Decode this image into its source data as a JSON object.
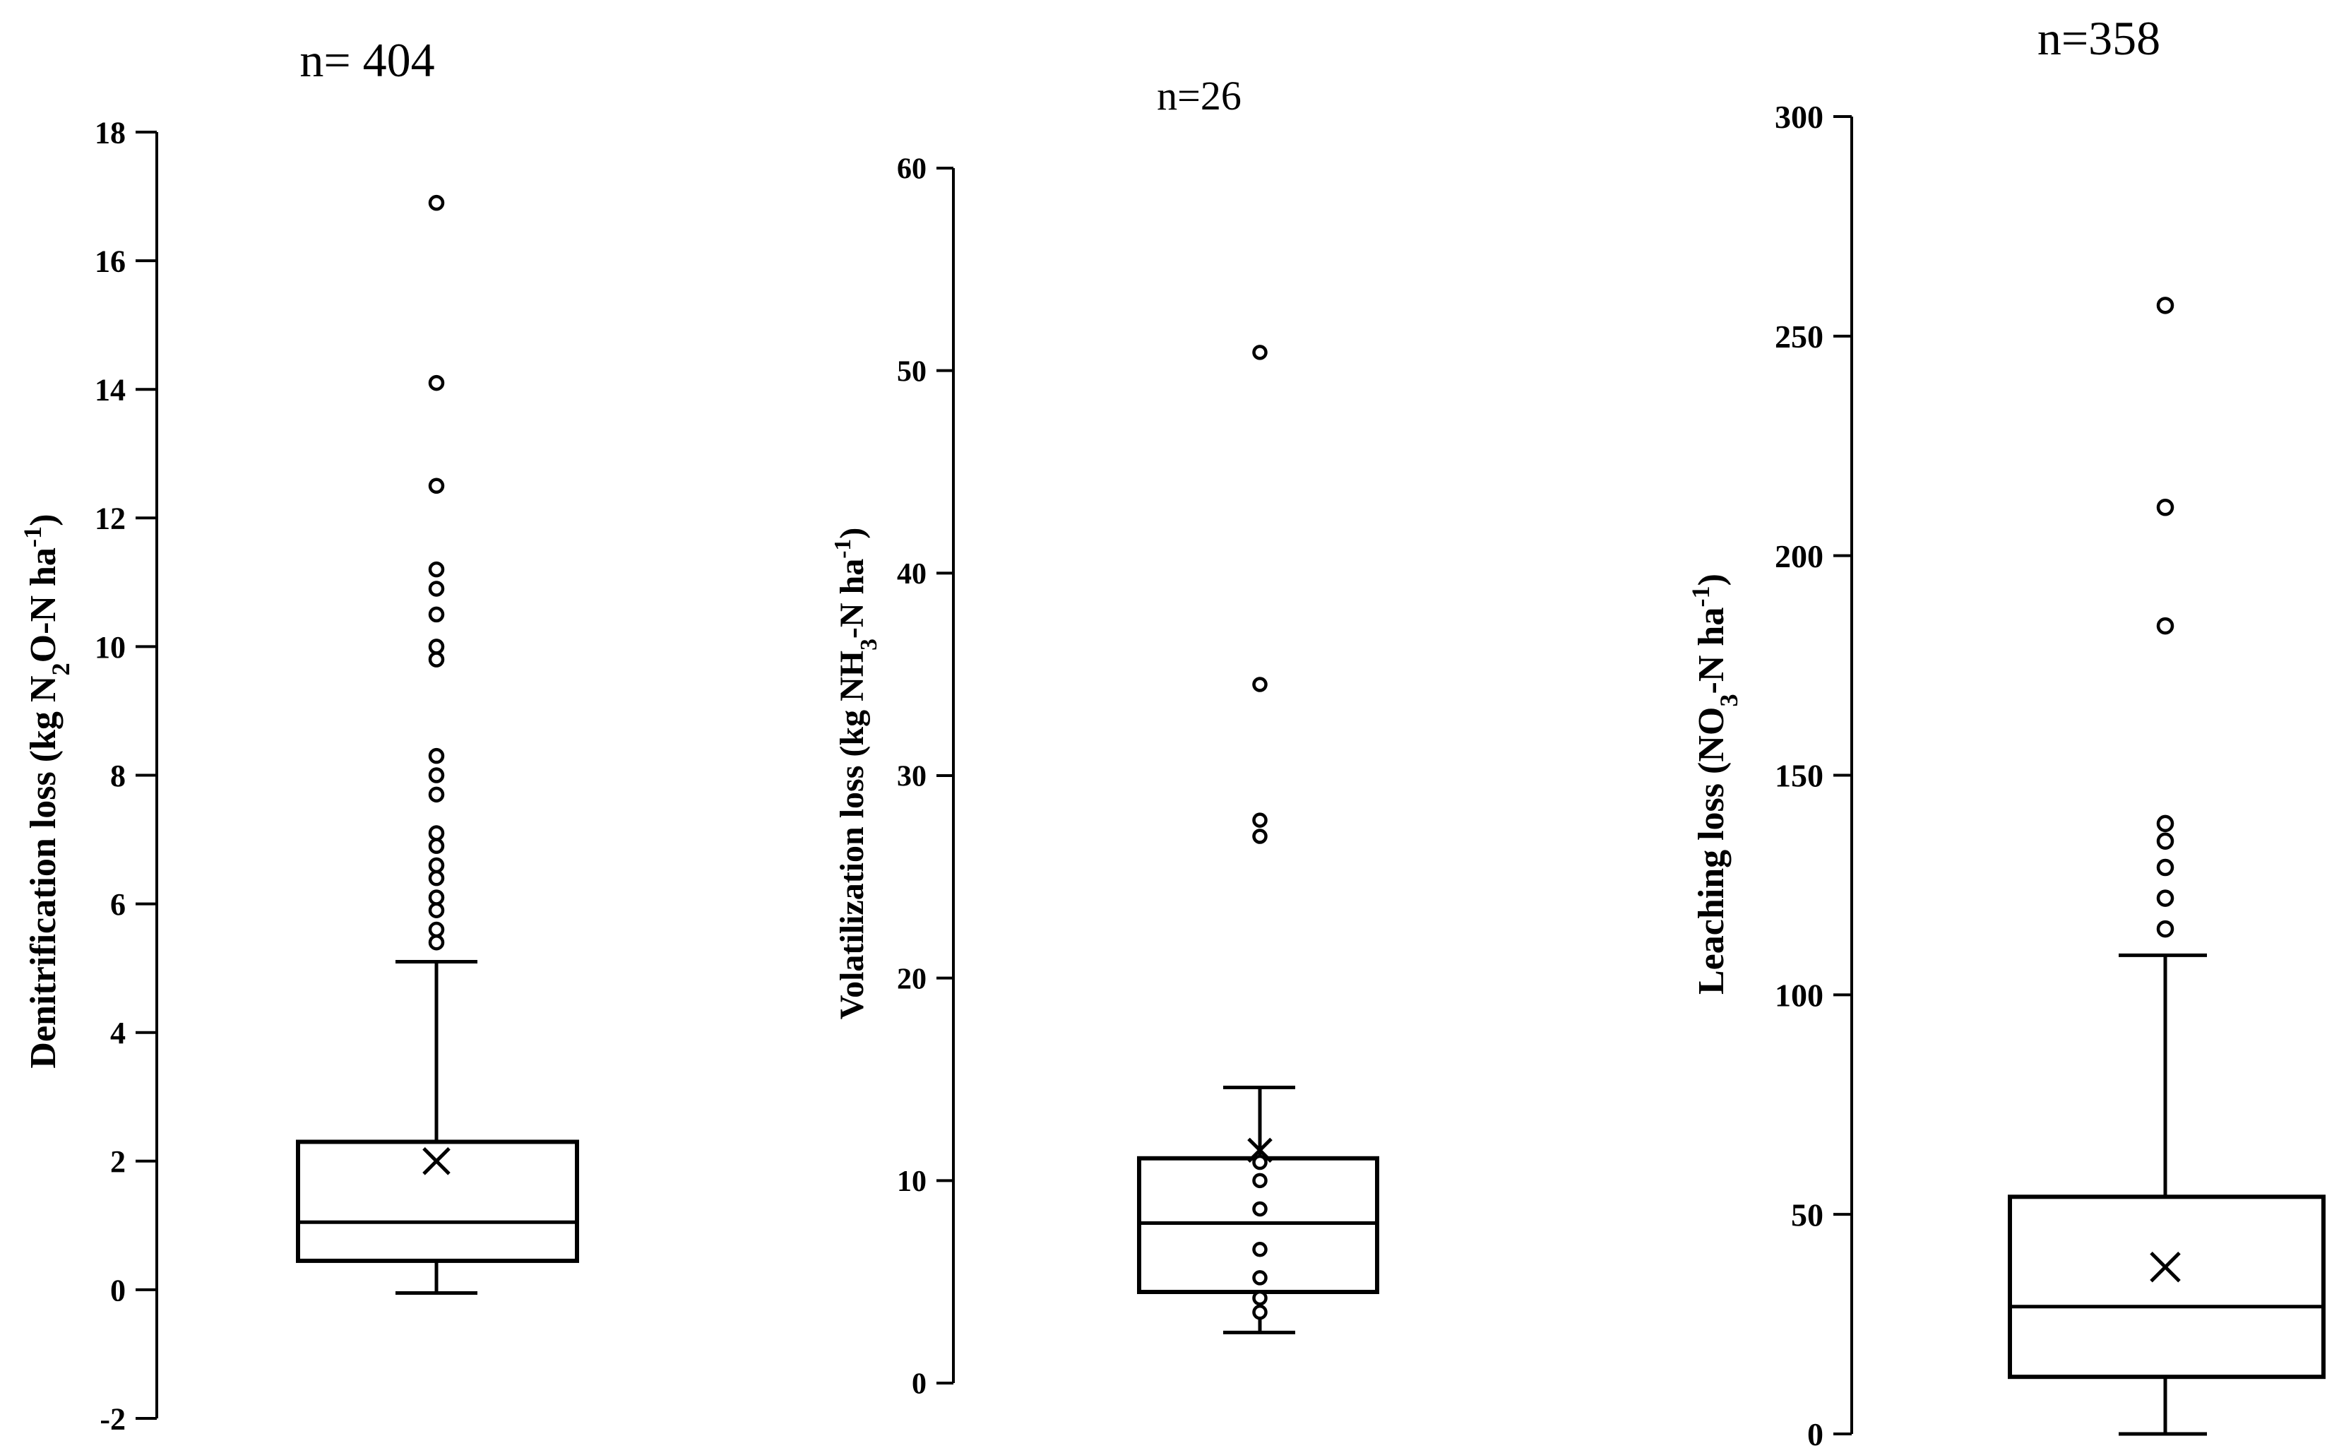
{
  "chart_data": [
    {
      "type": "box",
      "title": "n= 404",
      "ylabel": "Denitrification  loss (kg N2O-N ha-1)",
      "ylabel_parts": [
        {
          "t": "Denitrification  loss (kg N"
        },
        {
          "t": "2",
          "sub": true
        },
        {
          "t": "O-N ha"
        },
        {
          "t": "-1",
          "sup": true
        },
        {
          "t": ")"
        }
      ],
      "ylim": [
        -2,
        18
      ],
      "yticks": [
        -2,
        0,
        2,
        4,
        6,
        8,
        10,
        12,
        14,
        16,
        18
      ],
      "box": {
        "whisker_low": -0.05,
        "q1": 0.45,
        "median": 1.05,
        "q3": 2.3,
        "whisker_high": 5.1,
        "mean": 2.0
      },
      "outliers": [
        5.4,
        5.6,
        5.9,
        6.1,
        6.4,
        6.6,
        6.9,
        7.1,
        7.7,
        8.0,
        8.3,
        9.8,
        10.0,
        10.5,
        10.9,
        11.2,
        12.5,
        14.1,
        16.9
      ]
    },
    {
      "type": "box",
      "title": "n=26",
      "ylabel": "Volatilization  loss (kg NH3-N ha-1)",
      "ylabel_parts": [
        {
          "t": "Volatilization  loss (kg NH"
        },
        {
          "t": "3",
          "sub": true
        },
        {
          "t": "-N ha"
        },
        {
          "t": "-1",
          "sup": true
        },
        {
          "t": ")"
        }
      ],
      "ylim": [
        0,
        60
      ],
      "yticks": [
        0,
        10,
        20,
        30,
        40,
        50,
        60
      ],
      "box": {
        "whisker_low": 2.5,
        "q1": 4.5,
        "median": 7.9,
        "q3": 11.1,
        "whisker_high": 14.6,
        "mean": 11.5
      },
      "outliers": [
        3.5,
        4.2,
        5.2,
        6.6,
        8.6,
        10.0,
        10.9,
        27.0,
        27.8,
        34.5,
        50.9
      ]
    },
    {
      "type": "box",
      "title": "n=358",
      "ylabel": "Leaching loss (NO3-N ha-1)",
      "ylabel_parts": [
        {
          "t": "Leaching loss (NO"
        },
        {
          "t": "3",
          "sub": true
        },
        {
          "t": "-N ha"
        },
        {
          "t": "-1",
          "sup": true
        },
        {
          "t": ")"
        }
      ],
      "ylim": [
        0,
        300
      ],
      "yticks": [
        0,
        50,
        100,
        150,
        200,
        250,
        300
      ],
      "box": {
        "whisker_low": 0,
        "q1": 13,
        "median": 29,
        "q3": 54,
        "whisker_high": 109,
        "mean": 38
      },
      "outliers": [
        115,
        122,
        129,
        135,
        139,
        184,
        211,
        257
      ]
    }
  ]
}
